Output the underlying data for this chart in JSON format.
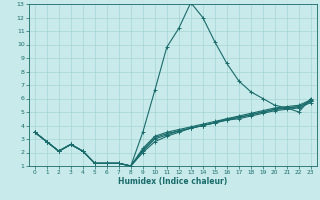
{
  "title": "",
  "xlabel": "Humidex (Indice chaleur)",
  "xlim": [
    -0.5,
    23.5
  ],
  "ylim": [
    1,
    13
  ],
  "xticks": [
    0,
    1,
    2,
    3,
    4,
    5,
    6,
    7,
    8,
    9,
    10,
    11,
    12,
    13,
    14,
    15,
    16,
    17,
    18,
    19,
    20,
    21,
    22,
    23
  ],
  "yticks": [
    1,
    2,
    3,
    4,
    5,
    6,
    7,
    8,
    9,
    10,
    11,
    12,
    13
  ],
  "bg_color": "#c8eaea",
  "line_color": "#1a6b6b",
  "grid_color": "#a8d4d4",
  "lines": [
    {
      "x": [
        0,
        1,
        2,
        3,
        4,
        5,
        6,
        7,
        8,
        9,
        10,
        11,
        12,
        13,
        14,
        15,
        16,
        17,
        18,
        19,
        20,
        21,
        22,
        23
      ],
      "y": [
        3.5,
        2.8,
        2.1,
        2.6,
        2.1,
        1.2,
        1.2,
        1.2,
        1.0,
        3.5,
        6.6,
        9.8,
        11.2,
        13.1,
        12.0,
        10.2,
        8.6,
        7.3,
        6.5,
        6.0,
        5.5,
        5.3,
        5.0,
        6.0
      ]
    },
    {
      "x": [
        0,
        1,
        2,
        3,
        4,
        5,
        6,
        7,
        8,
        9,
        10,
        11,
        12,
        13,
        14,
        15,
        16,
        17,
        18,
        19,
        20,
        21,
        22,
        23
      ],
      "y": [
        3.5,
        2.8,
        2.1,
        2.6,
        2.1,
        1.2,
        1.2,
        1.2,
        1.0,
        2.0,
        2.8,
        3.2,
        3.5,
        3.8,
        4.0,
        4.2,
        4.5,
        4.7,
        4.9,
        5.1,
        5.3,
        5.4,
        5.5,
        5.9
      ]
    },
    {
      "x": [
        0,
        1,
        2,
        3,
        4,
        5,
        6,
        7,
        8,
        9,
        10,
        11,
        12,
        13,
        14,
        15,
        16,
        17,
        18,
        19,
        20,
        21,
        22,
        23
      ],
      "y": [
        3.5,
        2.8,
        2.1,
        2.6,
        2.1,
        1.2,
        1.2,
        1.2,
        1.0,
        2.1,
        3.0,
        3.3,
        3.6,
        3.8,
        4.0,
        4.2,
        4.4,
        4.6,
        4.8,
        5.0,
        5.2,
        5.3,
        5.4,
        5.8
      ]
    },
    {
      "x": [
        0,
        1,
        2,
        3,
        4,
        5,
        6,
        7,
        8,
        9,
        10,
        11,
        12,
        13,
        14,
        15,
        16,
        17,
        18,
        19,
        20,
        21,
        22,
        23
      ],
      "y": [
        3.5,
        2.8,
        2.1,
        2.6,
        2.1,
        1.2,
        1.2,
        1.2,
        1.0,
        2.2,
        3.1,
        3.4,
        3.6,
        3.8,
        4.0,
        4.2,
        4.4,
        4.5,
        4.7,
        4.9,
        5.1,
        5.2,
        5.3,
        5.7
      ]
    },
    {
      "x": [
        0,
        1,
        2,
        3,
        4,
        5,
        6,
        7,
        8,
        9,
        10,
        11,
        12,
        13,
        14,
        15,
        16,
        17,
        18,
        19,
        20,
        21,
        22,
        23
      ],
      "y": [
        3.5,
        2.8,
        2.1,
        2.6,
        2.1,
        1.2,
        1.2,
        1.2,
        1.0,
        2.3,
        3.2,
        3.5,
        3.7,
        3.9,
        4.1,
        4.3,
        4.5,
        4.6,
        4.8,
        5.0,
        5.2,
        5.3,
        5.4,
        5.8
      ]
    }
  ]
}
